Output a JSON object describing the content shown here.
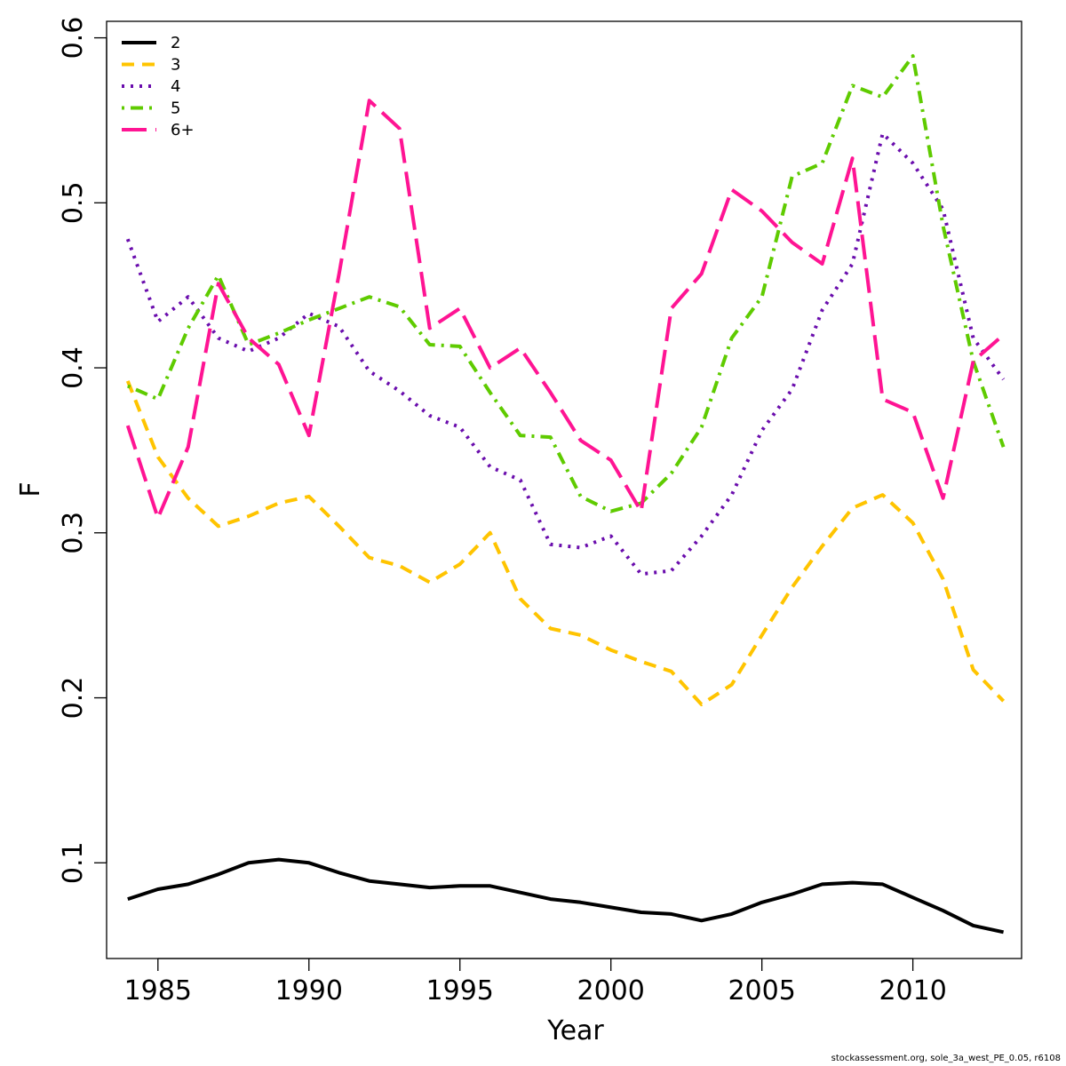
{
  "chart_data": {
    "type": "line",
    "xlabel": "Year",
    "ylabel": "F",
    "xlim": [
      1983.3,
      2013.6
    ],
    "ylim": [
      0.042,
      0.61
    ],
    "x_ticks": [
      1985,
      1990,
      1995,
      2000,
      2005,
      2010
    ],
    "y_ticks": [
      0.1,
      0.2,
      0.3,
      0.4,
      0.5,
      0.6
    ],
    "legend_position": "top-left",
    "x": [
      1984,
      1985,
      1986,
      1987,
      1988,
      1989,
      1990,
      1991,
      1992,
      1993,
      1994,
      1995,
      1996,
      1997,
      1998,
      1999,
      2000,
      2001,
      2002,
      2003,
      2004,
      2005,
      2006,
      2007,
      2008,
      2009,
      2010,
      2011,
      2012,
      2013
    ],
    "series": [
      {
        "name": "2",
        "color": "#000000",
        "dash": "solid",
        "values": [
          0.078,
          0.084,
          0.087,
          0.093,
          0.1,
          0.102,
          0.1,
          0.094,
          0.089,
          0.087,
          0.085,
          0.086,
          0.086,
          0.082,
          0.078,
          0.076,
          0.073,
          0.07,
          0.069,
          0.065,
          0.069,
          0.076,
          0.081,
          0.087,
          0.088,
          0.087,
          0.079,
          0.071,
          0.062,
          0.058
        ]
      },
      {
        "name": "3",
        "color": "#FFC400",
        "dash": "dashed",
        "values": [
          0.392,
          0.346,
          0.321,
          0.304,
          0.31,
          0.318,
          0.322,
          0.304,
          0.285,
          0.28,
          0.27,
          0.281,
          0.3,
          0.26,
          0.242,
          0.238,
          0.229,
          0.222,
          0.216,
          0.196,
          0.208,
          0.238,
          0.267,
          0.292,
          0.315,
          0.323,
          0.306,
          0.272,
          0.217,
          0.198
        ]
      },
      {
        "name": "4",
        "color": "#6A0DAD",
        "dash": "dotted",
        "values": [
          0.478,
          0.428,
          0.443,
          0.418,
          0.41,
          0.418,
          0.433,
          0.425,
          0.398,
          0.386,
          0.371,
          0.364,
          0.34,
          0.332,
          0.293,
          0.291,
          0.298,
          0.275,
          0.277,
          0.298,
          0.323,
          0.362,
          0.387,
          0.435,
          0.463,
          0.542,
          0.524,
          0.496,
          0.418,
          0.393
        ]
      },
      {
        "name": "5",
        "color": "#5FCB00",
        "dash": "dotdash",
        "values": [
          0.389,
          0.381,
          0.424,
          0.456,
          0.414,
          0.421,
          0.429,
          0.436,
          0.443,
          0.437,
          0.414,
          0.413,
          0.385,
          0.359,
          0.358,
          0.322,
          0.313,
          0.318,
          0.336,
          0.364,
          0.418,
          0.443,
          0.516,
          0.524,
          0.571,
          0.564,
          0.589,
          0.486,
          0.404,
          0.352
        ]
      },
      {
        "name": "6+",
        "color": "#FF1493",
        "dash": "longdash",
        "values": [
          0.365,
          0.309,
          0.352,
          0.451,
          0.418,
          0.402,
          0.359,
          0.457,
          0.562,
          0.545,
          0.424,
          0.436,
          0.4,
          0.412,
          0.385,
          0.356,
          0.344,
          0.313,
          0.436,
          0.457,
          0.508,
          0.495,
          0.476,
          0.463,
          0.527,
          0.381,
          0.373,
          0.321,
          0.404,
          0.42
        ]
      }
    ]
  },
  "footer": {
    "credit": "stockassessment.org, sole_3a_west_PE_0.05, r6108"
  }
}
